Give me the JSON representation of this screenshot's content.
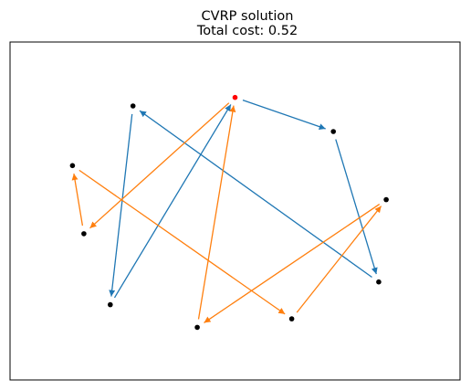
{
  "chart_data": {
    "type": "scatter",
    "title": "CVRP solution",
    "subtitle": "Total cost: 0.52",
    "xlabel": "",
    "ylabel": "",
    "grid": false,
    "axes_visible": false,
    "xlim": [
      0.0,
      1.0
    ],
    "ylim": [
      0.0,
      1.0
    ],
    "depot": {
      "x": 0.5,
      "y": 0.9,
      "color": "#ff0000"
    },
    "customers": [
      {
        "x": 0.23,
        "y": 0.87
      },
      {
        "x": 0.76,
        "y": 0.78
      },
      {
        "x": 0.07,
        "y": 0.66
      },
      {
        "x": 0.1,
        "y": 0.42
      },
      {
        "x": 0.9,
        "y": 0.54
      },
      {
        "x": 0.88,
        "y": 0.25
      },
      {
        "x": 0.17,
        "y": 0.17
      },
      {
        "x": 0.4,
        "y": 0.09
      },
      {
        "x": 0.65,
        "y": 0.12
      }
    ],
    "routes": [
      {
        "color": "#1f77b4",
        "path": [
          [
            0.5,
            0.9
          ],
          [
            0.76,
            0.78
          ],
          [
            0.88,
            0.25
          ],
          [
            0.23,
            0.87
          ],
          [
            0.17,
            0.17
          ],
          [
            0.5,
            0.9
          ]
        ]
      },
      {
        "color": "#ff7f0e",
        "path": [
          [
            0.5,
            0.9
          ],
          [
            0.1,
            0.42
          ],
          [
            0.07,
            0.66
          ],
          [
            0.65,
            0.12
          ],
          [
            0.9,
            0.54
          ],
          [
            0.4,
            0.09
          ],
          [
            0.5,
            0.9
          ]
        ]
      }
    ],
    "customer_color": "#000000"
  }
}
